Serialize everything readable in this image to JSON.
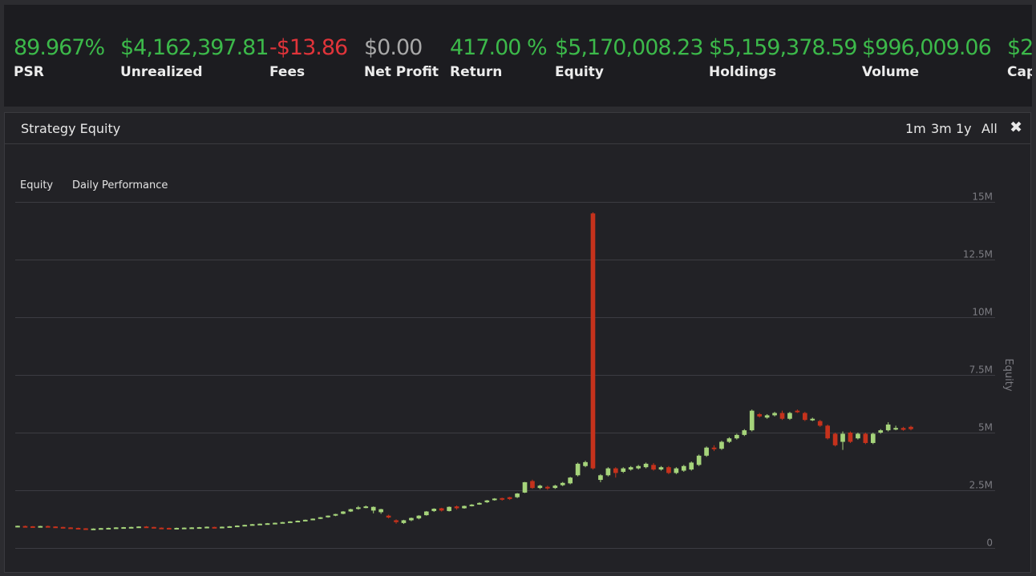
{
  "stats": [
    {
      "value": "89.967%",
      "label": "PSR",
      "color": "#3cb94a"
    },
    {
      "value": "$4,162,397.81",
      "label": "Unrealized",
      "color": "#3cb94a"
    },
    {
      "value": "-$13.86",
      "label": "Fees",
      "color": "#e0343a"
    },
    {
      "value": "$0.00",
      "label": "Net Profit",
      "color": "#a8a8a8"
    },
    {
      "value": "417.00 %",
      "label": "Return",
      "color": "#3cb94a"
    },
    {
      "value": "$5,170,008.23",
      "label": "Equity",
      "color": "#3cb94a"
    },
    {
      "value": "$5,159,378.59",
      "label": "Holdings",
      "color": "#3cb94a"
    },
    {
      "value": "$996,009.06",
      "label": "Volume",
      "color": "#3cb94a"
    },
    {
      "value": "$2",
      "label": "Cap",
      "color": "#3cb94a"
    }
  ],
  "panel": {
    "title": "Strategy Equity",
    "ranges": [
      "1m",
      "3m",
      "1y",
      "All"
    ],
    "close_icon": "✖",
    "tabs": [
      "Equity",
      "Daily Performance"
    ]
  },
  "colors": {
    "up": "#a6d47b",
    "down": "#c5321c",
    "grid": "#3c3c42",
    "axis_text": "#7c7c82"
  },
  "chart_data": {
    "type": "candlestick",
    "ylabel": "Equity",
    "ylim": [
      0,
      15000000
    ],
    "yticks": [
      0,
      2500000,
      5000000,
      7500000,
      10000000,
      12500000,
      15000000
    ],
    "ytick_labels": [
      "0",
      "2.5M",
      "5M",
      "7.5M",
      "10M",
      "12.5M",
      "15M"
    ],
    "candles": [
      [
        0.93,
        0.96,
        0.9,
        0.97
      ],
      [
        0.95,
        0.94,
        0.92,
        0.97
      ],
      [
        0.94,
        0.92,
        0.9,
        0.95
      ],
      [
        0.93,
        0.95,
        0.91,
        0.96
      ],
      [
        0.95,
        0.93,
        0.91,
        0.97
      ],
      [
        0.93,
        0.91,
        0.89,
        0.94
      ],
      [
        0.91,
        0.89,
        0.87,
        0.92
      ],
      [
        0.89,
        0.87,
        0.85,
        0.9
      ],
      [
        0.87,
        0.86,
        0.84,
        0.88
      ],
      [
        0.85,
        0.84,
        0.82,
        0.86
      ],
      [
        0.83,
        0.84,
        0.81,
        0.85
      ],
      [
        0.84,
        0.86,
        0.83,
        0.87
      ],
      [
        0.86,
        0.87,
        0.84,
        0.88
      ],
      [
        0.87,
        0.89,
        0.86,
        0.9
      ],
      [
        0.89,
        0.9,
        0.87,
        0.91
      ],
      [
        0.9,
        0.91,
        0.88,
        0.92
      ],
      [
        0.91,
        0.93,
        0.89,
        0.94
      ],
      [
        0.93,
        0.91,
        0.89,
        0.95
      ],
      [
        0.91,
        0.9,
        0.88,
        0.92
      ],
      [
        0.88,
        0.87,
        0.85,
        0.89
      ],
      [
        0.87,
        0.86,
        0.84,
        0.88
      ],
      [
        0.86,
        0.87,
        0.85,
        0.88
      ],
      [
        0.87,
        0.88,
        0.86,
        0.89
      ],
      [
        0.88,
        0.89,
        0.87,
        0.9
      ],
      [
        0.89,
        0.9,
        0.88,
        0.91
      ],
      [
        0.9,
        0.92,
        0.89,
        0.93
      ],
      [
        0.91,
        0.9,
        0.89,
        0.92
      ],
      [
        0.9,
        0.92,
        0.89,
        0.93
      ],
      [
        0.92,
        0.94,
        0.91,
        0.95
      ],
      [
        0.95,
        0.97,
        0.94,
        0.98
      ],
      [
        0.97,
        1.0,
        0.96,
        1.01
      ],
      [
        1.0,
        1.03,
        0.99,
        1.04
      ],
      [
        1.03,
        1.05,
        1.01,
        1.06
      ],
      [
        1.05,
        1.07,
        1.04,
        1.08
      ],
      [
        1.07,
        1.09,
        1.05,
        1.1
      ],
      [
        1.09,
        1.12,
        1.08,
        1.13
      ],
      [
        1.12,
        1.15,
        1.1,
        1.16
      ],
      [
        1.15,
        1.18,
        1.13,
        1.19
      ],
      [
        1.18,
        1.22,
        1.16,
        1.23
      ],
      [
        1.22,
        1.27,
        1.2,
        1.28
      ],
      [
        1.27,
        1.33,
        1.25,
        1.34
      ],
      [
        1.33,
        1.4,
        1.31,
        1.41
      ],
      [
        1.4,
        1.47,
        1.38,
        1.48
      ],
      [
        1.48,
        1.58,
        1.46,
        1.6
      ],
      [
        1.58,
        1.68,
        1.56,
        1.7
      ],
      [
        1.7,
        1.76,
        1.66,
        1.82
      ],
      [
        1.76,
        1.8,
        1.72,
        1.84
      ],
      [
        1.62,
        1.78,
        1.5,
        1.8
      ],
      [
        1.55,
        1.68,
        1.48,
        1.7
      ],
      [
        1.4,
        1.32,
        1.28,
        1.44
      ],
      [
        1.2,
        1.12,
        1.05,
        1.24
      ],
      [
        1.08,
        1.2,
        1.04,
        1.22
      ],
      [
        1.2,
        1.3,
        1.16,
        1.32
      ],
      [
        1.28,
        1.4,
        1.24,
        1.42
      ],
      [
        1.42,
        1.58,
        1.4,
        1.6
      ],
      [
        1.6,
        1.7,
        1.56,
        1.72
      ],
      [
        1.72,
        1.62,
        1.58,
        1.74
      ],
      [
        1.6,
        1.78,
        1.58,
        1.8
      ],
      [
        1.8,
        1.72,
        1.66,
        1.84
      ],
      [
        1.72,
        1.82,
        1.7,
        1.84
      ],
      [
        1.82,
        1.88,
        1.8,
        1.9
      ],
      [
        1.9,
        1.95,
        1.87,
        1.98
      ],
      [
        1.98,
        2.06,
        1.95,
        2.08
      ],
      [
        2.08,
        2.14,
        2.05,
        2.16
      ],
      [
        2.16,
        2.1,
        2.05,
        2.18
      ],
      [
        2.2,
        2.12,
        2.08,
        2.22
      ],
      [
        2.2,
        2.36,
        2.16,
        2.38
      ],
      [
        2.4,
        2.85,
        2.38,
        2.86
      ],
      [
        2.9,
        2.6,
        2.56,
        2.96
      ],
      [
        2.6,
        2.7,
        2.55,
        2.74
      ],
      [
        2.65,
        2.58,
        2.52,
        2.7
      ],
      [
        2.6,
        2.7,
        2.56,
        2.74
      ],
      [
        2.72,
        2.82,
        2.68,
        2.86
      ],
      [
        2.8,
        3.05,
        2.76,
        3.08
      ],
      [
        3.15,
        3.65,
        3.1,
        3.7
      ],
      [
        3.55,
        3.72,
        3.5,
        3.78
      ],
      [
        14.5,
        3.45,
        3.4,
        14.55
      ],
      [
        2.95,
        3.15,
        2.85,
        3.2
      ],
      [
        3.15,
        3.45,
        3.1,
        3.5
      ],
      [
        3.45,
        3.25,
        3.05,
        3.5
      ],
      [
        3.3,
        3.45,
        3.25,
        3.5
      ],
      [
        3.4,
        3.5,
        3.35,
        3.55
      ],
      [
        3.45,
        3.55,
        3.4,
        3.6
      ],
      [
        3.5,
        3.65,
        3.45,
        3.7
      ],
      [
        3.6,
        3.4,
        3.35,
        3.68
      ],
      [
        3.4,
        3.5,
        3.35,
        3.55
      ],
      [
        3.5,
        3.25,
        3.2,
        3.55
      ],
      [
        3.25,
        3.45,
        3.2,
        3.5
      ],
      [
        3.35,
        3.55,
        3.3,
        3.6
      ],
      [
        3.4,
        3.7,
        3.35,
        3.75
      ],
      [
        3.6,
        4.0,
        3.55,
        4.05
      ],
      [
        4.0,
        4.35,
        3.95,
        4.4
      ],
      [
        4.35,
        4.3,
        4.2,
        4.45
      ],
      [
        4.3,
        4.6,
        4.25,
        4.65
      ],
      [
        4.6,
        4.75,
        4.55,
        4.8
      ],
      [
        4.75,
        4.9,
        4.7,
        4.95
      ],
      [
        4.9,
        5.1,
        4.85,
        5.15
      ],
      [
        5.1,
        5.95,
        5.05,
        6.0
      ],
      [
        5.8,
        5.7,
        5.65,
        5.85
      ],
      [
        5.65,
        5.75,
        5.6,
        5.8
      ],
      [
        5.75,
        5.85,
        5.7,
        5.9
      ],
      [
        5.85,
        5.6,
        5.55,
        5.95
      ],
      [
        5.6,
        5.85,
        5.55,
        5.9
      ],
      [
        5.95,
        5.9,
        5.85,
        6.0
      ],
      [
        5.85,
        5.55,
        5.5,
        5.9
      ],
      [
        5.55,
        5.6,
        5.5,
        5.65
      ],
      [
        5.5,
        5.3,
        5.25,
        5.55
      ],
      [
        5.3,
        4.75,
        4.7,
        5.35
      ],
      [
        4.95,
        4.45,
        4.4,
        5.0
      ],
      [
        4.6,
        4.95,
        4.25,
        5.05
      ],
      [
        5.0,
        4.6,
        4.55,
        5.05
      ],
      [
        4.75,
        4.95,
        4.7,
        5.0
      ],
      [
        4.95,
        4.55,
        4.5,
        5.0
      ],
      [
        4.55,
        4.95,
        4.5,
        5.0
      ],
      [
        5.0,
        5.1,
        4.95,
        5.15
      ],
      [
        5.1,
        5.35,
        5.05,
        5.45
      ],
      [
        5.15,
        5.2,
        5.1,
        5.3
      ],
      [
        5.2,
        5.12,
        5.08,
        5.25
      ],
      [
        5.25,
        5.15,
        5.1,
        5.3
      ]
    ]
  }
}
